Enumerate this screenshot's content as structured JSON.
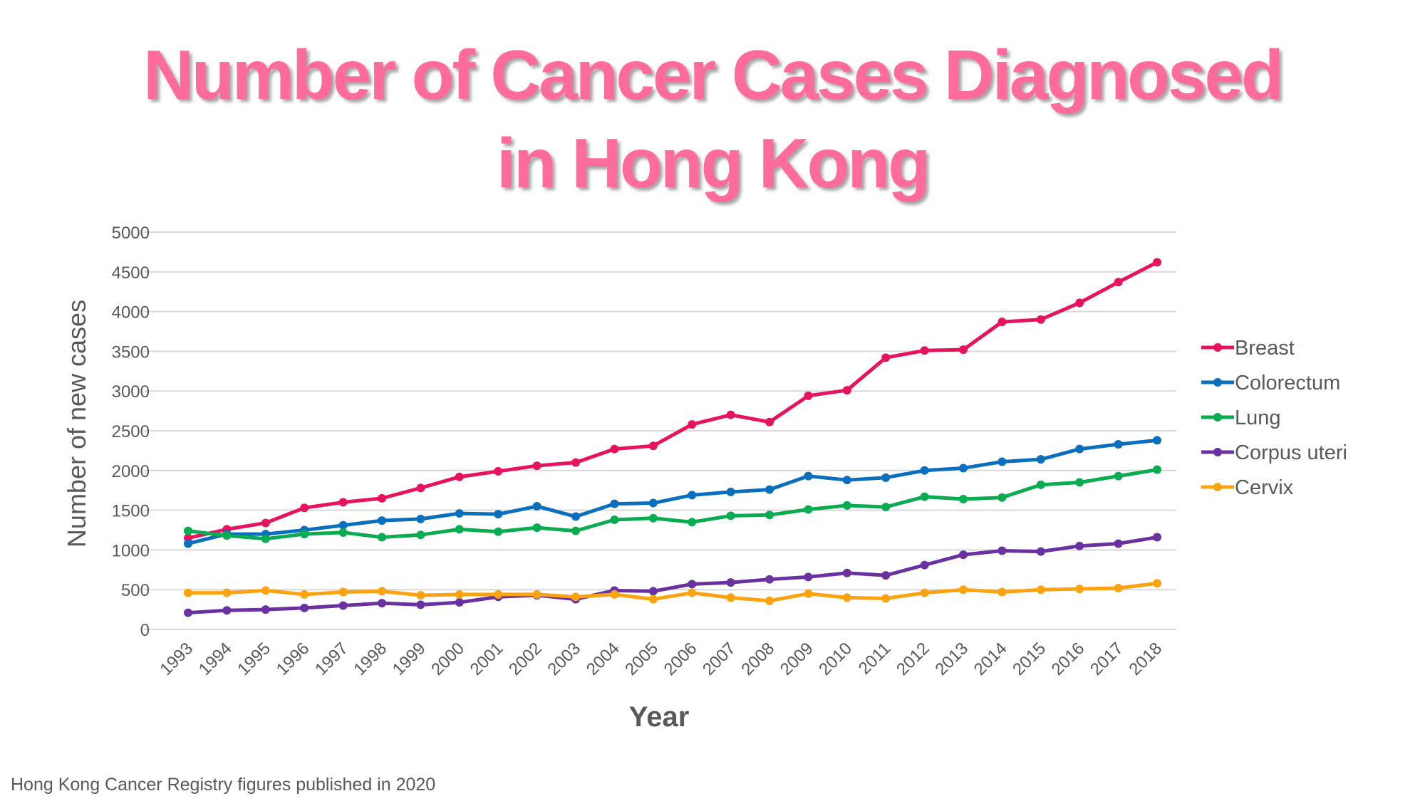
{
  "chart_data": {
    "type": "line",
    "title": [
      "Number of Cancer Cases Diagnosed",
      "in Hong Kong"
    ],
    "xlabel": "Year",
    "ylabel": "Number of new cases",
    "ylim": [
      0,
      5000
    ],
    "yticks": [
      0,
      500,
      1000,
      1500,
      2000,
      2500,
      3000,
      3500,
      4000,
      4500,
      5000
    ],
    "grid": true,
    "legend_position": "right",
    "categories": [
      "1993",
      "1994",
      "1995",
      "1996",
      "1997",
      "1998",
      "1999",
      "2000",
      "2001",
      "2002",
      "2003",
      "2004",
      "2005",
      "2006",
      "2007",
      "2008",
      "2009",
      "2010",
      "2011",
      "2012",
      "2013",
      "2014",
      "2015",
      "2016",
      "2017",
      "2018"
    ],
    "series": [
      {
        "name": "Breast",
        "color": "#e8135f",
        "values": [
          1150,
          1260,
          1340,
          1530,
          1600,
          1650,
          1780,
          1920,
          1990,
          2060,
          2100,
          2270,
          2310,
          2580,
          2700,
          2610,
          2940,
          3010,
          3420,
          3510,
          3520,
          3870,
          3900,
          4110,
          4370,
          4620
        ]
      },
      {
        "name": "Colorectum",
        "color": "#0a6fbd",
        "values": [
          1080,
          1200,
          1200,
          1250,
          1310,
          1370,
          1390,
          1460,
          1450,
          1550,
          1420,
          1580,
          1590,
          1690,
          1730,
          1760,
          1930,
          1880,
          1910,
          2000,
          2030,
          2110,
          2140,
          2270,
          2330,
          2380
        ]
      },
      {
        "name": "Lung",
        "color": "#0aac52",
        "values": [
          1240,
          1180,
          1140,
          1200,
          1220,
          1160,
          1190,
          1260,
          1230,
          1280,
          1240,
          1380,
          1400,
          1350,
          1430,
          1440,
          1510,
          1560,
          1540,
          1670,
          1640,
          1660,
          1820,
          1850,
          1930,
          2010
        ]
      },
      {
        "name": "Corpus uteri",
        "color": "#6a32a0",
        "values": [
          210,
          240,
          250,
          270,
          300,
          330,
          310,
          340,
          410,
          430,
          380,
          490,
          480,
          570,
          590,
          630,
          660,
          710,
          680,
          810,
          940,
          990,
          980,
          1050,
          1080,
          1160
        ]
      },
      {
        "name": "Cervix",
        "color": "#fca311",
        "values": [
          460,
          460,
          490,
          440,
          470,
          480,
          430,
          440,
          440,
          440,
          410,
          440,
          380,
          460,
          400,
          360,
          450,
          400,
          390,
          460,
          500,
          470,
          500,
          510,
          520,
          580
        ]
      }
    ]
  },
  "footer": "Hong Kong Cancer Registry figures published in 2020"
}
